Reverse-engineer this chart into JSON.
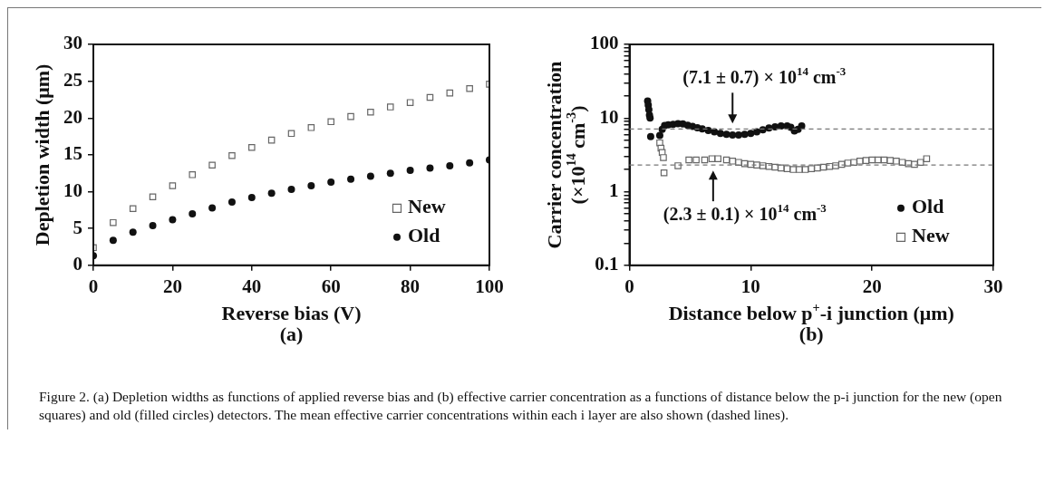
{
  "chart_data": [
    {
      "type": "scatter",
      "title": "(a)",
      "xlabel": "Reverse bias (V)",
      "ylabel": "Depletion width (μm)",
      "xlim": [
        0,
        100
      ],
      "xticks": [
        0,
        20,
        40,
        60,
        80,
        100
      ],
      "ylim": [
        0,
        30
      ],
      "yticks": [
        0,
        5,
        10,
        15,
        20,
        25,
        30
      ],
      "grid": false,
      "legend": "bottom right",
      "series": [
        {
          "name": "New",
          "color": "#666666",
          "marker": "square",
          "x": [
            0,
            5,
            10,
            15,
            20,
            25,
            30,
            35,
            40,
            45,
            50,
            55,
            60,
            65,
            70,
            75,
            80,
            85,
            90,
            95,
            100
          ],
          "values": [
            2.4,
            5.8,
            7.7,
            9.3,
            10.8,
            12.3,
            13.6,
            14.9,
            16.0,
            17.0,
            17.9,
            18.7,
            19.5,
            20.2,
            20.8,
            21.5,
            22.1,
            22.8,
            23.4,
            24.0,
            24.6
          ]
        },
        {
          "name": "Old",
          "color": "#111111",
          "marker": "circle",
          "x": [
            0,
            5,
            10,
            15,
            20,
            25,
            30,
            35,
            40,
            45,
            50,
            55,
            60,
            65,
            70,
            75,
            80,
            85,
            90,
            95,
            100
          ],
          "values": [
            1.3,
            3.4,
            4.5,
            5.4,
            6.2,
            7.0,
            7.8,
            8.6,
            9.2,
            9.8,
            10.3,
            10.8,
            11.3,
            11.7,
            12.1,
            12.5,
            12.9,
            13.2,
            13.5,
            13.9,
            14.3
          ]
        }
      ]
    },
    {
      "type": "scatter",
      "title": "(b)",
      "xlabel": "Distance below p$^{+}$-i junction (μm)",
      "ylabel": "Carrier concentration\n(×10$^{14}$ cm$^{-3}$)",
      "log": "y",
      "xlim": [
        0,
        30
      ],
      "xticks": [
        0,
        10,
        20,
        30
      ],
      "ylim": [
        0.1,
        100
      ],
      "yticks": [
        0.1,
        {
          "value": 0.2,
          "label": null
        },
        {
          "value": 0.3,
          "label": null
        },
        {
          "value": 0.4,
          "label": null
        },
        {
          "value": 0.5,
          "label": null
        },
        {
          "value": 0.6,
          "label": null
        },
        {
          "value": 0.7,
          "label": null
        },
        {
          "value": 0.8,
          "label": null
        },
        {
          "value": 0.9,
          "label": null
        },
        1,
        {
          "value": 2,
          "label": null
        },
        {
          "value": 3,
          "label": null
        },
        {
          "value": 4,
          "label": null
        },
        {
          "value": 5,
          "label": null
        },
        {
          "value": 6,
          "label": null
        },
        {
          "value": 7,
          "label": null
        },
        {
          "value": 8,
          "label": null
        },
        {
          "value": 9,
          "label": null
        },
        10,
        {
          "value": 20,
          "label": null
        },
        {
          "value": 30,
          "label": null
        },
        {
          "value": 40,
          "label": null
        },
        {
          "value": 50,
          "label": null
        },
        {
          "value": 60,
          "label": null
        },
        {
          "value": 70,
          "label": null
        },
        {
          "value": 80,
          "label": null
        },
        {
          "value": 90,
          "label": null
        },
        100
      ],
      "grid": false,
      "legend": "bottom right",
      "ref_lines": [
        {
          "axis": "y",
          "value": 7.1,
          "line_style": "dashed",
          "color": "#777777"
        },
        {
          "axis": "y",
          "value": 2.3,
          "line_style": "dashed",
          "color": "#777777"
        }
      ],
      "annotations": [
        {
          "text": "(7.1 ± 0.7) × 10$^{14}$ cm$^{-3}$",
          "x": 8.5,
          "y": 7.1
        },
        {
          "text": "(2.3 ± 0.1) × 10$^{14}$ cm$^{-3}$",
          "x": 6.9,
          "y": 2.3
        },
        "Figure 2. (a) Depletion widths as functions of applied reverse bias and (b) effective carrier concentration as a functions of distance below the p-i junction for the new (open squares) and old (filled circles) detectors. The mean effective carrier concentrations within each i layer are also shown (dashed lines)."
      ],
      "series": [
        {
          "name": "Old",
          "color": "#111111",
          "marker": "circle",
          "x": [
            1.5,
            1.55,
            1.6,
            1.65,
            1.7,
            1.75,
            2.5,
            2.7,
            2.9,
            3.2,
            3.6,
            4.0,
            4.4,
            4.8,
            5.2,
            5.6,
            6.0,
            6.5,
            7.0,
            7.5,
            8.0,
            8.5,
            9.0,
            9.5,
            10.0,
            10.5,
            11.0,
            11.5,
            12.0,
            12.5,
            13.0,
            13.3,
            13.6,
            13.9,
            14.2
          ],
          "values": [
            17,
            15,
            13,
            11,
            10,
            5.6,
            5.8,
            7.0,
            7.9,
            8.1,
            8.2,
            8.4,
            8.3,
            8.0,
            7.7,
            7.4,
            7.1,
            6.8,
            6.5,
            6.2,
            6.0,
            5.9,
            5.9,
            6.0,
            6.2,
            6.5,
            6.9,
            7.3,
            7.6,
            7.8,
            7.8,
            7.5,
            6.7,
            7.0,
            7.8
          ]
        },
        {
          "name": "New",
          "color": "#666666",
          "marker": "square",
          "x": [
            2.5,
            2.6,
            2.7,
            2.8,
            2.85,
            4.0,
            4.9,
            5.5,
            6.2,
            6.8,
            7.3,
            8.0,
            8.5,
            9.0,
            9.5,
            10.0,
            10.5,
            11.0,
            11.5,
            12.0,
            12.5,
            13.0,
            13.5,
            14.0,
            14.5,
            15.0,
            15.5,
            16.0,
            16.5,
            17.0,
            17.5,
            18.0,
            18.5,
            19.0,
            19.5,
            20.0,
            20.5,
            21.0,
            21.5,
            22.0,
            22.5,
            23.0,
            23.5,
            24.0,
            24.5
          ],
          "values": [
            4.6,
            3.9,
            3.4,
            2.9,
            1.8,
            2.25,
            2.7,
            2.7,
            2.7,
            2.8,
            2.8,
            2.7,
            2.6,
            2.5,
            2.4,
            2.35,
            2.3,
            2.25,
            2.2,
            2.15,
            2.1,
            2.05,
            2.0,
            2.0,
            2.0,
            2.05,
            2.1,
            2.15,
            2.2,
            2.25,
            2.35,
            2.45,
            2.5,
            2.6,
            2.65,
            2.7,
            2.7,
            2.7,
            2.65,
            2.6,
            2.5,
            2.4,
            2.35,
            2.5,
            2.8
          ]
        }
      ]
    }
  ]
}
